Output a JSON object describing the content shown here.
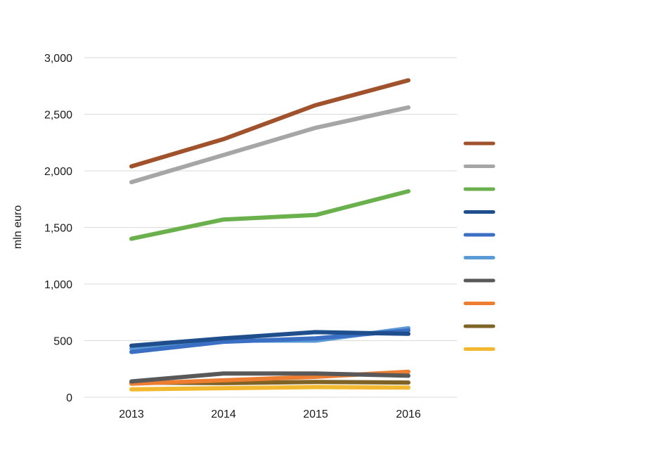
{
  "chart_data": {
    "type": "line",
    "title": "",
    "xlabel": "",
    "ylabel": "mln euro",
    "categories": [
      "2013",
      "2014",
      "2015",
      "2016"
    ],
    "ylim": [
      0,
      3000
    ],
    "y_ticks": [
      0,
      500,
      1000,
      1500,
      2000,
      2500,
      3000
    ],
    "y_tick_labels": [
      "0",
      "500",
      "1,000",
      "1,500",
      "2,000",
      "2,500",
      "3,000"
    ],
    "grid": "horizontal",
    "legend_position": "right",
    "legend_labels_visible": false,
    "series": [
      {
        "color": "#a0522d",
        "values": [
          2040,
          2280,
          2580,
          2800
        ]
      },
      {
        "color": "#a6a6a6",
        "values": [
          1900,
          2140,
          2380,
          2560
        ]
      },
      {
        "color": "#6ab04c",
        "values": [
          1400,
          1570,
          1610,
          1820
        ]
      },
      {
        "color": "#1f4e8c",
        "values": [
          455,
          520,
          575,
          560
        ]
      },
      {
        "color": "#3a6fc4",
        "values": [
          400,
          490,
          520,
          590
        ]
      },
      {
        "color": "#5b9bd5",
        "values": [
          430,
          500,
          500,
          610
        ]
      },
      {
        "color": "#595959",
        "values": [
          140,
          210,
          210,
          190
        ]
      },
      {
        "color": "#ed7d31",
        "values": [
          120,
          150,
          180,
          225
        ]
      },
      {
        "color": "#7f6226",
        "values": [
          130,
          125,
          135,
          130
        ]
      },
      {
        "color": "#f2b82f",
        "values": [
          70,
          80,
          90,
          85
        ]
      }
    ]
  }
}
